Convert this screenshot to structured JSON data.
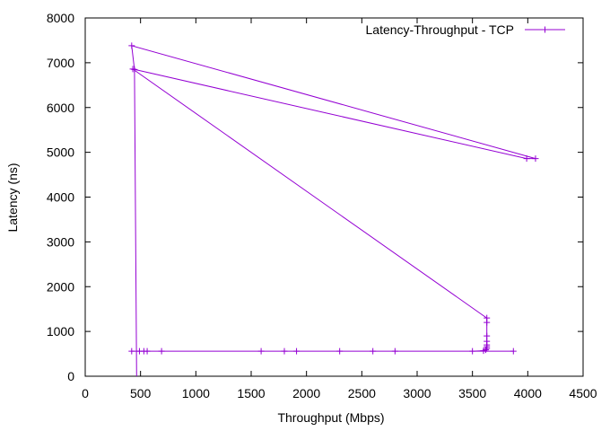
{
  "chart_data": {
    "type": "line",
    "title": "",
    "xlabel": "Throughput (Mbps)",
    "ylabel": "Latency (ns)",
    "xlim": [
      0,
      4500
    ],
    "ylim": [
      0,
      8000
    ],
    "xticks": [
      "0",
      "500",
      "1000",
      "1500",
      "2000",
      "2500",
      "3000",
      "3500",
      "4000",
      "4500"
    ],
    "yticks": [
      "0",
      "1000",
      "2000",
      "3000",
      "4000",
      "5000",
      "6000",
      "7000",
      "8000"
    ],
    "grid": false,
    "legend": "top-right",
    "series": [
      {
        "name": "Latency-Throughput - TCP",
        "color": "#9400d3",
        "points": [
          [
            465,
            -100
          ],
          [
            445,
            6850
          ],
          [
            420,
            7380
          ],
          [
            4070,
            4860
          ],
          [
            3990,
            4860
          ],
          [
            430,
            6860
          ],
          [
            3630,
            1300
          ],
          [
            3630,
            1200
          ],
          [
            3630,
            900
          ],
          [
            3630,
            780
          ],
          [
            3630,
            700
          ],
          [
            3630,
            660
          ],
          [
            3630,
            620
          ],
          [
            3620,
            590
          ],
          [
            3600,
            570
          ],
          [
            3500,
            560
          ],
          [
            3870,
            560
          ],
          [
            2800,
            560
          ],
          [
            2600,
            560
          ],
          [
            2300,
            560
          ],
          [
            1910,
            560
          ],
          [
            1800,
            560
          ],
          [
            1590,
            560
          ],
          [
            690,
            560
          ],
          [
            560,
            560
          ],
          [
            530,
            560
          ],
          [
            490,
            560
          ],
          [
            420,
            560
          ]
        ]
      }
    ]
  }
}
